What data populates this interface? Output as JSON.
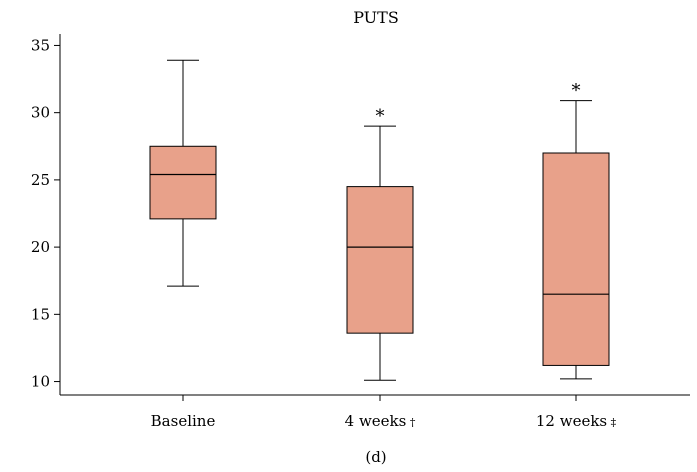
{
  "chart_data": {
    "type": "box",
    "title": "PUTS",
    "caption": "(d)",
    "xlabel": "",
    "ylabel": "",
    "ylim": [
      9,
      36
    ],
    "yticks": [
      10,
      15,
      20,
      25,
      30,
      35
    ],
    "grid": false,
    "fill_color": "#e8a18a",
    "stroke_color": "#000000",
    "categories": [
      {
        "label": "Baseline",
        "marker": ""
      },
      {
        "label": "4 weeks",
        "marker": "†"
      },
      {
        "label": "12 weeks",
        "marker": "‡"
      }
    ],
    "boxes": [
      {
        "min": 17.1,
        "q1": 22.1,
        "median": 25.4,
        "q3": 27.5,
        "max": 33.9,
        "annotation": ""
      },
      {
        "min": 10.1,
        "q1": 13.6,
        "median": 20.0,
        "q3": 24.5,
        "max": 29.0,
        "annotation": "*"
      },
      {
        "min": 10.2,
        "q1": 11.2,
        "median": 16.5,
        "q3": 27.0,
        "max": 30.9,
        "annotation": "*"
      }
    ]
  }
}
